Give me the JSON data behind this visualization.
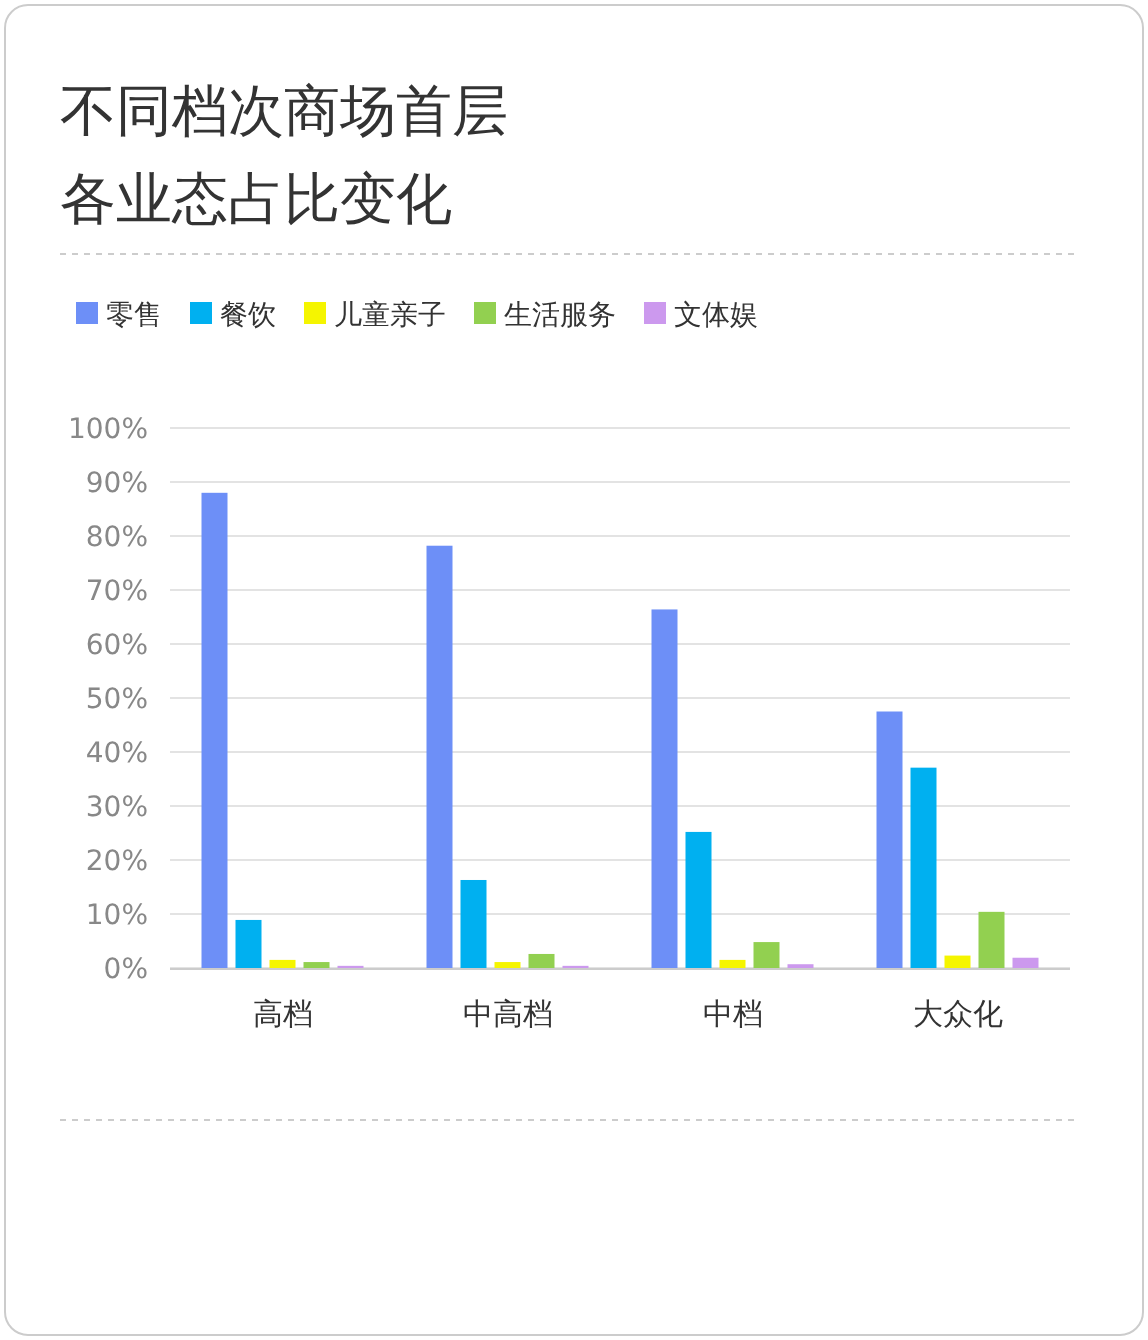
{
  "chart_data": {
    "type": "bar",
    "title": "不同档次商场首层各业态占比变化",
    "categories": [
      "高档",
      "中高档",
      "中档",
      "大众化"
    ],
    "series": [
      {
        "name": "零售",
        "color": "#6d8ff7",
        "values": [
          88,
          78.2,
          66.4,
          47.5
        ]
      },
      {
        "name": "餐饮",
        "color": "#00b0f0",
        "values": [
          8.9,
          16.3,
          25.2,
          37.1
        ]
      },
      {
        "name": "儿童亲子",
        "color": "#f5f500",
        "values": [
          1.5,
          1.1,
          1.5,
          2.3
        ]
      },
      {
        "name": "生活服务",
        "color": "#92d050",
        "values": [
          1.1,
          2.6,
          4.8,
          10.4
        ]
      },
      {
        "name": "文体娱",
        "color": "#cc99ee",
        "values": [
          0.4,
          0.4,
          0.7,
          1.9
        ]
      }
    ],
    "ylim": [
      0,
      100
    ],
    "yticks": [
      {
        "value": 0,
        "label": "0%"
      },
      {
        "value": 10,
        "label": "10%"
      },
      {
        "value": 20,
        "label": "20%"
      },
      {
        "value": 30,
        "label": "30%"
      },
      {
        "value": 40,
        "label": "40%"
      },
      {
        "value": 50,
        "label": "50%"
      },
      {
        "value": 60,
        "label": "60%"
      },
      {
        "value": 70,
        "label": "70%"
      },
      {
        "value": 80,
        "label": "80%"
      },
      {
        "value": 90,
        "label": "90%"
      },
      {
        "value": 100,
        "label": "100%"
      }
    ],
    "grid": "y",
    "legend": "top left"
  }
}
